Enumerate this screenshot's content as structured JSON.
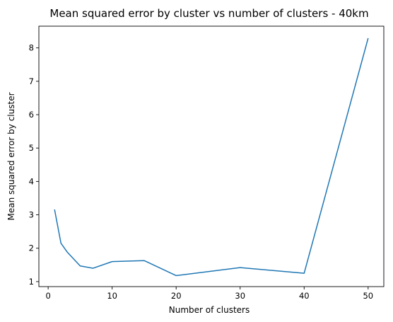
{
  "chart_data": {
    "type": "line",
    "title": "Mean squared error by cluster vs number of clusters - 40km",
    "xlabel": "Number of clusters",
    "ylabel": "Mean squared error by cluster",
    "xlim": [
      -1.45,
      52.45
    ],
    "ylim": [
      0.85,
      8.65
    ],
    "xticks": [
      0,
      10,
      20,
      30,
      40,
      50
    ],
    "yticks": [
      1,
      2,
      3,
      4,
      5,
      6,
      7,
      8
    ],
    "grid": false,
    "series": [
      {
        "color": "#1f77b4",
        "x": [
          1,
          2,
          3,
          5,
          7,
          10,
          15,
          20,
          30,
          40,
          50
        ],
        "y": [
          3.16,
          2.15,
          1.88,
          1.47,
          1.4,
          1.6,
          1.63,
          1.18,
          1.42,
          1.25,
          8.29
        ]
      }
    ]
  }
}
